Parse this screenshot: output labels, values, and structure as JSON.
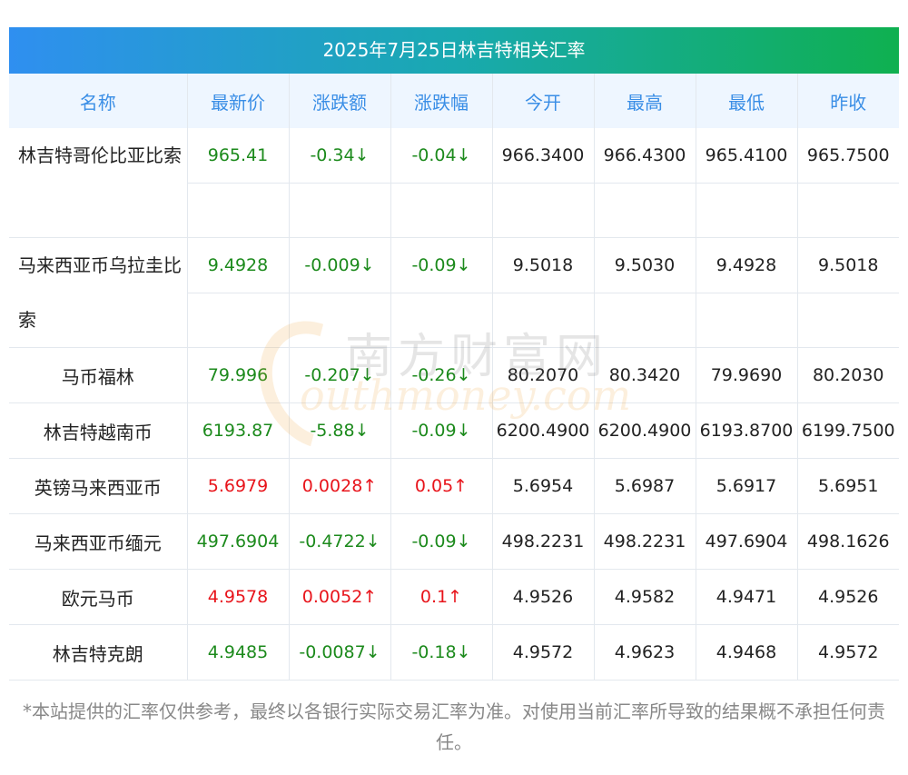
{
  "title": "2025年7月25日林吉特相关汇率",
  "headers": [
    "名称",
    "最新价",
    "涨跌额",
    "涨跌幅",
    "今开",
    "最高",
    "最低",
    "昨收"
  ],
  "rows": [
    {
      "name": "林吉特哥伦比亚比索",
      "latest": "965.41",
      "change": "-0.34↓",
      "pct": "-0.04↓",
      "open": "966.3400",
      "high": "966.4300",
      "low": "965.4100",
      "prev": "965.7500",
      "dir": "down"
    },
    {
      "name": "马来西亚币乌拉圭比索",
      "latest": "9.4928",
      "change": "-0.009↓",
      "pct": "-0.09↓",
      "open": "9.5018",
      "high": "9.5030",
      "low": "9.4928",
      "prev": "9.5018",
      "dir": "down"
    },
    {
      "name": "马币福林",
      "latest": "79.996",
      "change": "-0.207↓",
      "pct": "-0.26↓",
      "open": "80.2070",
      "high": "80.3420",
      "low": "79.9690",
      "prev": "80.2030",
      "dir": "down"
    },
    {
      "name": "林吉特越南币",
      "latest": "6193.87",
      "change": "-5.88↓",
      "pct": "-0.09↓",
      "open": "6200.4900",
      "high": "6200.4900",
      "low": "6193.8700",
      "prev": "6199.7500",
      "dir": "down"
    },
    {
      "name": "英镑马来西亚币",
      "latest": "5.6979",
      "change": "0.0028↑",
      "pct": "0.05↑",
      "open": "5.6954",
      "high": "5.6987",
      "low": "5.6917",
      "prev": "5.6951",
      "dir": "up"
    },
    {
      "name": "马来西亚币缅元",
      "latest": "497.6904",
      "change": "-0.4722↓",
      "pct": "-0.09↓",
      "open": "498.2231",
      "high": "498.2231",
      "low": "497.6904",
      "prev": "498.1626",
      "dir": "down"
    },
    {
      "name": "欧元马币",
      "latest": "4.9578",
      "change": "0.0052↑",
      "pct": "0.1↑",
      "open": "4.9526",
      "high": "4.9582",
      "low": "4.9471",
      "prev": "4.9526",
      "dir": "up"
    },
    {
      "name": "林吉特克朗",
      "latest": "4.9485",
      "change": "-0.0087↓",
      "pct": "-0.18↓",
      "open": "4.9572",
      "high": "4.9623",
      "low": "4.9468",
      "prev": "4.9572",
      "dir": "down"
    }
  ],
  "watermark": {
    "cn": "南方财富网",
    "en": "outhmoney.com"
  },
  "footnote": "*本站提供的汇率仅供参考，最终以各银行实际交易汇率为准。对使用当前汇率所导致的结果概不承担任何责任。",
  "colors": {
    "up": "#e8141b",
    "down": "#1c8a1c",
    "header_text": "#3a8ee6",
    "header_bg": "#eef6ff"
  }
}
